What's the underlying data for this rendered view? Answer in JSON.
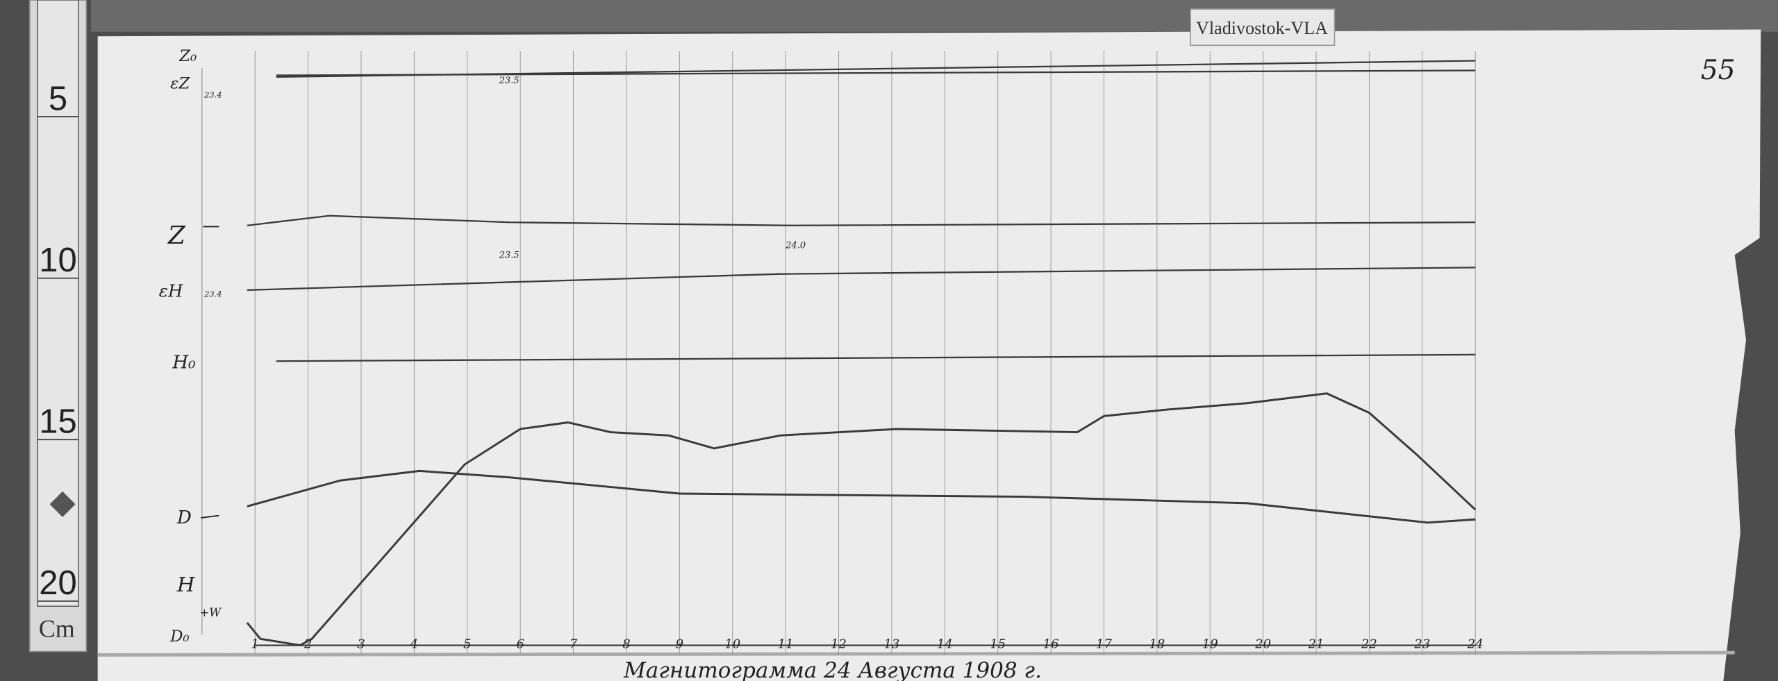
{
  "label_tag": "Vladivostok-VLA",
  "sheet_number": "55",
  "caption": "Магнитограмма 24 Августа 1908 г.",
  "ruler": {
    "marks": [
      "5",
      "10",
      "15",
      "20"
    ],
    "unit": "Cm"
  },
  "colors": {
    "paper": "#ececec",
    "trace": "#3a3a3a",
    "grid": "#9a9a9a",
    "background": "#4a4a4a"
  },
  "chart_data": {
    "type": "line",
    "title": "",
    "xlabel": "",
    "ylabel": "",
    "x_ticks": [
      "1",
      "2",
      "3",
      "4",
      "5",
      "6",
      "7",
      "8",
      "9",
      "10",
      "11",
      "12",
      "13",
      "14",
      "15",
      "16",
      "17",
      "18",
      "19",
      "20",
      "21",
      "22",
      "23",
      "24"
    ],
    "xlim": [
      0,
      24
    ],
    "ylim_cm": [
      3,
      22.5
    ],
    "grid": "vertical hourly lines",
    "trace_labels": {
      "z0": "Z₀",
      "ez": "εZ",
      "ez_temp": "23.4",
      "z": "Z",
      "eh": "εH",
      "eh_temp": "23.4",
      "h0": "H₀",
      "d": "D",
      "h": "H",
      "w": "+W",
      "d0": "D₀"
    },
    "annotations": [
      {
        "text": "23.5",
        "x": 5.6,
        "y_cm": 4.6
      },
      {
        "text": "23.5",
        "x": 5.6,
        "y_cm": 10.0
      },
      {
        "text": "24.0",
        "x": 11.0,
        "y_cm": 9.7
      }
    ],
    "series": [
      {
        "name": "Z₀",
        "x": [
          1.4,
          24
        ],
        "y": [
          4.4,
          3.9
        ]
      },
      {
        "name": "εZ",
        "x": [
          1.4,
          24
        ],
        "y": [
          4.35,
          4.2
        ]
      },
      {
        "name": "Z",
        "x": [
          0.85,
          2.4,
          5.8,
          11.1,
          24
        ],
        "y": [
          9.0,
          8.7,
          8.9,
          9.0,
          8.9
        ]
      },
      {
        "name": "εH",
        "x": [
          0.85,
          10.9,
          24
        ],
        "y": [
          11.0,
          10.5,
          10.3
        ]
      },
      {
        "name": "H₀",
        "x": [
          1.4,
          24
        ],
        "y": [
          13.2,
          13.0
        ]
      },
      {
        "name": "D",
        "x": [
          0.85,
          2.6,
          4.1,
          5.8,
          9.0,
          15.5,
          19.7,
          23.1,
          24
        ],
        "y": [
          17.7,
          16.9,
          16.6,
          16.8,
          17.3,
          17.4,
          17.6,
          18.2,
          18.1
        ]
      },
      {
        "name": "H",
        "x": [
          0.85,
          1.1,
          1.85,
          2.07,
          3.46,
          4.95,
          6.0,
          6.9,
          7.7,
          8.8,
          9.65,
          10.9,
          13.1,
          16.5,
          17.0,
          18.2,
          19.7,
          21.2,
          22.0,
          22.9,
          24.0
        ],
        "y": [
          21.3,
          21.8,
          22.0,
          21.8,
          19.2,
          16.4,
          15.3,
          15.1,
          15.4,
          15.5,
          15.9,
          15.5,
          15.3,
          15.4,
          14.9,
          14.7,
          14.5,
          14.2,
          14.8,
          16.1,
          17.8
        ]
      },
      {
        "name": "D₀",
        "x": [
          1,
          24
        ],
        "y": [
          22.0,
          22.0
        ]
      }
    ]
  }
}
